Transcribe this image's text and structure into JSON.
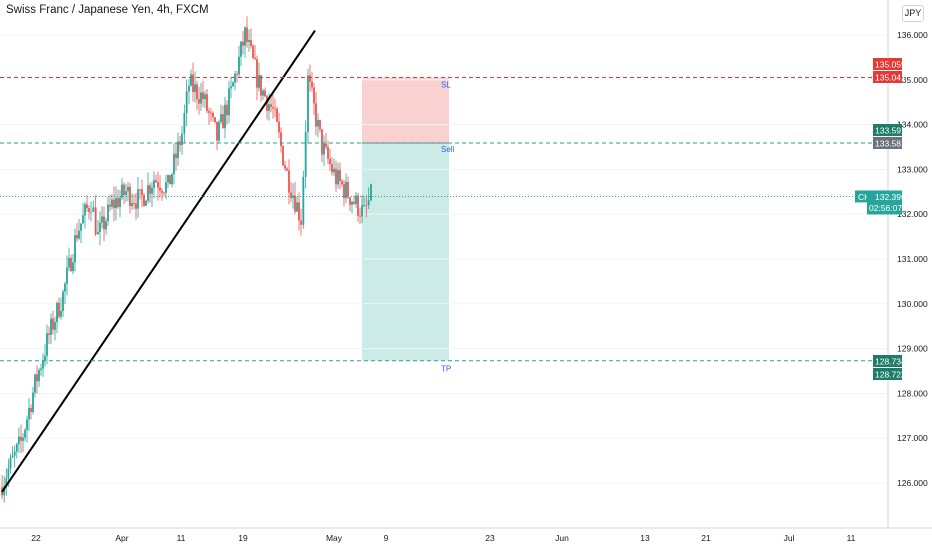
{
  "header": {
    "title": "Swiss Franc / Japanese Yen, 4h, FXCM",
    "currency": "JPY"
  },
  "colors": {
    "up": "#26a69a",
    "down": "#ef5350",
    "sl_line": "#e53935",
    "tp_line": "#26a69a",
    "stop_zone": "#f9c6c5",
    "target_zone": "#c8e9e3",
    "trendline": "#000000",
    "current_price": "#26a69a"
  },
  "chart_data": {
    "type": "candlestick",
    "symbol": "CHFJPY",
    "x_ticks": [
      "22",
      "Apr",
      "11",
      "19",
      "May",
      "9",
      "23",
      "Jun",
      "13",
      "21",
      "Jul",
      "11"
    ],
    "y_ticks": [
      "136.000",
      "135.000",
      "134.000",
      "133.000",
      "132.000",
      "131.000",
      "130.000",
      "129.000",
      "128.000",
      "127.000",
      "126.000"
    ],
    "ylim": [
      125.2,
      136.6
    ],
    "price_labels": {
      "sl_upper": "135.059",
      "sl_lower": "135.041",
      "entry_upper": "133.591",
      "entry_lower": "133.581",
      "current_price": "132.396",
      "countdown": "02:56:07",
      "tp_upper": "128.734",
      "tp_lower": "128.723"
    },
    "current_label": "CHFJPY",
    "levels": {
      "stop_loss": 135.05,
      "entry": 133.59,
      "take_profit": 128.73,
      "current": 132.396
    },
    "position_labels": {
      "stop": "SL",
      "entry": "Sell",
      "target": "TP"
    },
    "price_path": [
      [
        "Mar 15",
        125.9
      ],
      [
        "Mar 18",
        126.9
      ],
      [
        "Mar 20",
        128.2
      ],
      [
        "Mar 22",
        129.3
      ],
      [
        "Mar 24",
        130.2
      ],
      [
        "Mar 26",
        131.6
      ],
      [
        "Mar 28",
        132.3
      ],
      [
        "Mar 29",
        131.5
      ],
      [
        "Mar 31",
        132.2
      ],
      [
        "Apr 2",
        132.5
      ],
      [
        "Apr 4",
        132.3
      ],
      [
        "Apr 6",
        132.8
      ],
      [
        "Apr 8",
        132.6
      ],
      [
        "Apr 10",
        133.8
      ],
      [
        "Apr 11",
        134.9
      ],
      [
        "Apr 13",
        134.6
      ],
      [
        "Apr 15",
        133.7
      ],
      [
        "Apr 17",
        134.7
      ],
      [
        "Apr 19",
        136.0
      ],
      [
        "Apr 21",
        134.9
      ],
      [
        "Apr 23",
        134.3
      ],
      [
        "Apr 25",
        132.9
      ],
      [
        "Apr 27",
        131.9
      ],
      [
        "Apr 28",
        135.0
      ],
      [
        "Apr 30",
        133.5
      ],
      [
        "May 2",
        132.8
      ],
      [
        "May 4",
        132.4
      ],
      [
        "May 6",
        132.0
      ],
      [
        "May 7",
        132.4
      ]
    ],
    "trendline": {
      "from": [
        "Mar 15",
        125.8
      ],
      "to": [
        "Apr 29",
        136.1
      ]
    }
  }
}
